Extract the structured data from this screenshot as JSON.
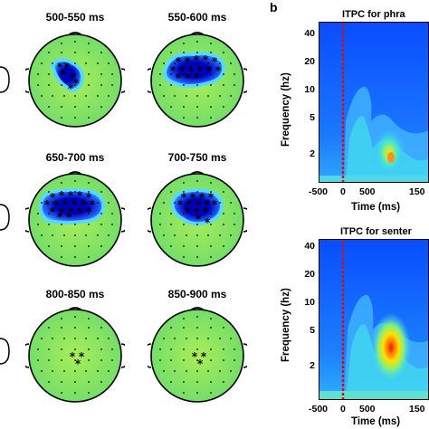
{
  "panel_b_label": "b",
  "topomaps": [
    {
      "label": "500-550 ms"
    },
    {
      "label": "550-600 ms"
    },
    {
      "label": "650-700 ms"
    },
    {
      "label": "700-750 ms"
    },
    {
      "label": "800-850 ms"
    },
    {
      "label": "850-900 ms"
    }
  ],
  "itpc_plots": [
    {
      "title": "ITPC for phra",
      "ylabel": "Frequency (hz)",
      "xlabel": "Time (ms)",
      "yticks": [
        "40",
        "20",
        "10",
        "5",
        "2"
      ],
      "xticks": [
        "-500",
        "0",
        "500",
        "150"
      ]
    },
    {
      "title": "ITPC for senter",
      "ylabel": "Frequency (hz)",
      "xlabel": "Time (ms)",
      "yticks": [
        "40",
        "20",
        "10",
        "5",
        "2"
      ],
      "xticks": [
        "-500",
        "0",
        "500",
        "150"
      ]
    }
  ],
  "colors": {
    "topo_bg": "#7fe060",
    "topo_blue": "#0000b0",
    "itpc_bg": "#1060ff",
    "onset_line": "#cc0000"
  }
}
